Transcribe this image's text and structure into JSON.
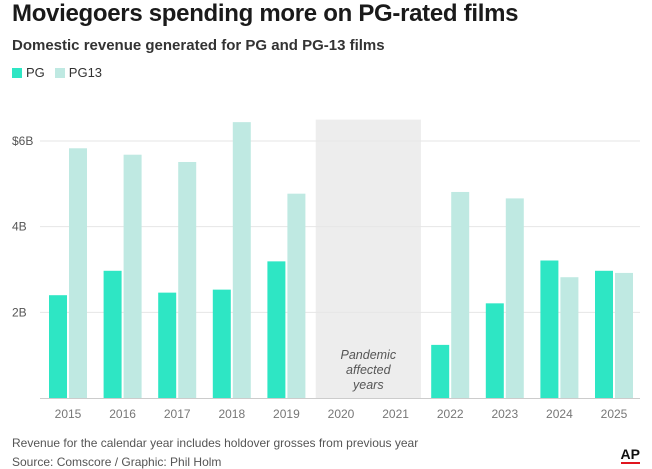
{
  "header": {
    "title": "Moviegoers spending more on PG-rated films",
    "subtitle": "Domestic revenue generated for PG and PG-13 films"
  },
  "footer": {
    "note": "Revenue for the calendar year includes holdover grosses from previous year",
    "source": "Source: Comscore / Graphic: Phil Holm",
    "logo": "AP"
  },
  "colors": {
    "pg": "#2ee6c4",
    "pg13": "#bfe9e2",
    "shade": "#ededed",
    "grid": "#e6e6e6"
  },
  "chart_data": {
    "type": "bar",
    "title": "Moviegoers spending more on PG-rated films",
    "subtitle": "Domestic revenue generated for PG and PG-13 films",
    "categories": [
      "2015",
      "2016",
      "2017",
      "2018",
      "2019",
      "2020",
      "2021",
      "2022",
      "2023",
      "2024",
      "2025"
    ],
    "series": [
      {
        "name": "PG",
        "values": [
          2.4,
          2.97,
          2.46,
          2.53,
          3.19,
          null,
          null,
          1.24,
          2.21,
          3.21,
          2.97
        ]
      },
      {
        "name": "PG13",
        "values": [
          5.83,
          5.68,
          5.51,
          6.44,
          4.77,
          null,
          null,
          4.81,
          4.66,
          2.82,
          2.92
        ]
      }
    ],
    "ylim": [
      0,
      6.5
    ],
    "yticks": [
      2,
      4,
      6
    ],
    "yticklabels": [
      "2B",
      "4B",
      "$6B"
    ],
    "xlabel": "",
    "ylabel": "",
    "legend_position": "top-left",
    "grid": true,
    "shaded_range": {
      "from": "2020",
      "to": "2021"
    },
    "annotation": [
      "Pandemic",
      "affected",
      "years"
    ]
  }
}
